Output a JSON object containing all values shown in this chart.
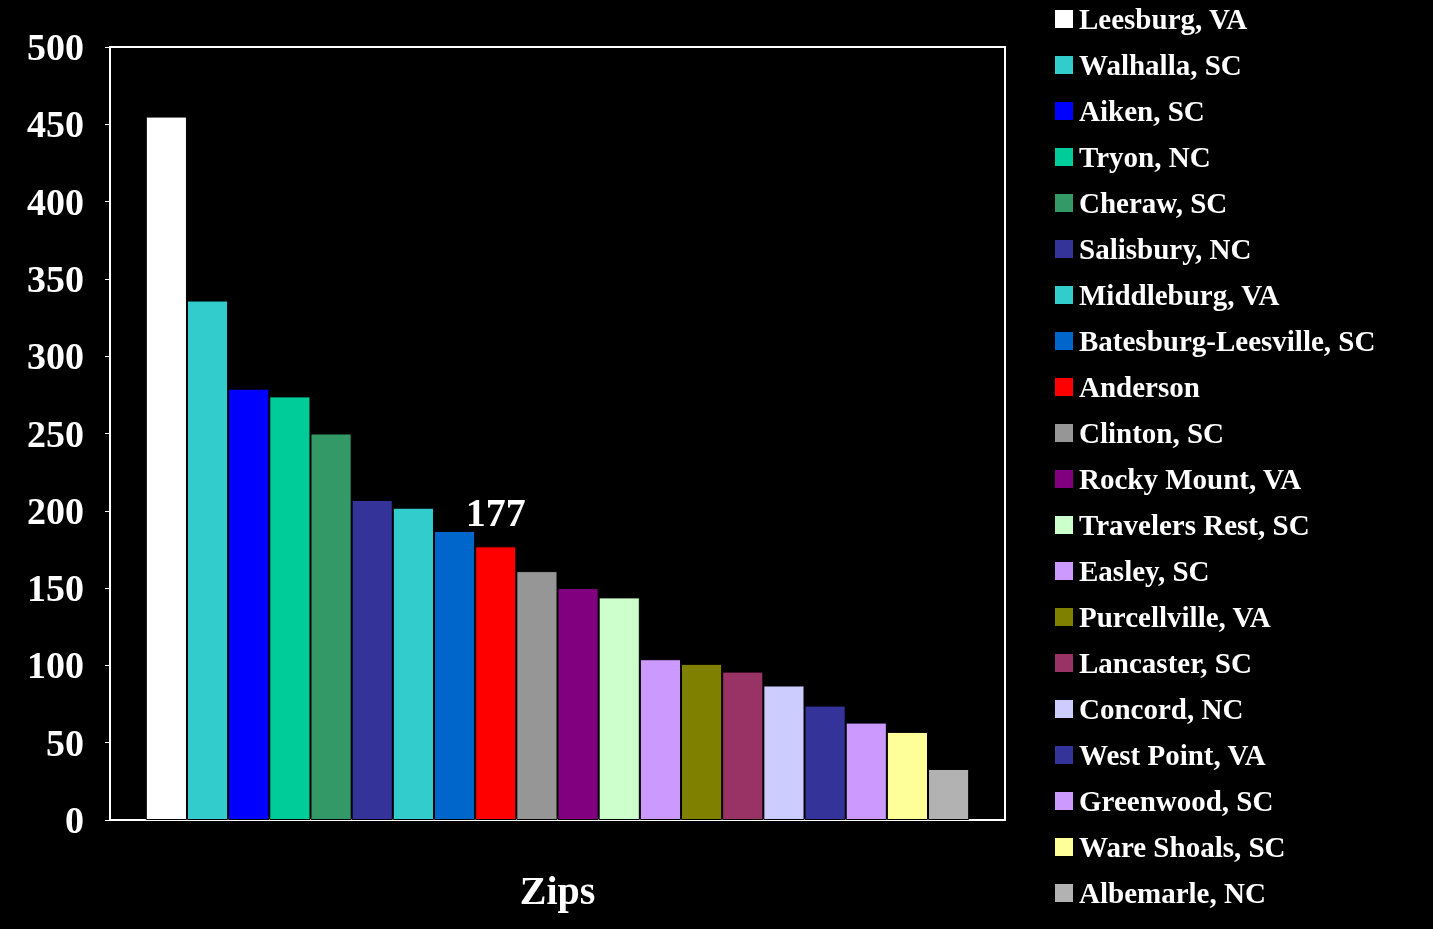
{
  "chart_data": {
    "type": "bar",
    "xlabel": "Zips",
    "categories": [
      null
    ],
    "ylim": [
      0,
      500
    ],
    "yticks": [
      0,
      50,
      100,
      150,
      200,
      250,
      300,
      350,
      400,
      450,
      500
    ],
    "grid": false,
    "legend": "right",
    "series": [
      {
        "name": "Leesburg, VA",
        "color": "#ffffff",
        "values": [
          455
        ]
      },
      {
        "name": "Walhalla, SC",
        "color": "#33cccc",
        "values": [
          336
        ]
      },
      {
        "name": "Aiken, SC",
        "color": "#0000ff",
        "values": [
          279
        ]
      },
      {
        "name": "Tryon, NC",
        "color": "#00cc99",
        "values": [
          274
        ]
      },
      {
        "name": "Cheraw, SC",
        "color": "#339966",
        "values": [
          250
        ]
      },
      {
        "name": "Salisbury, NC",
        "color": "#333399",
        "values": [
          207
        ]
      },
      {
        "name": "Middleburg, VA",
        "color": "#33cccc",
        "values": [
          202
        ]
      },
      {
        "name": "Batesburg-Leesville, SC",
        "color": "#0066cc",
        "values": [
          187
        ]
      },
      {
        "name": "Anderson",
        "color": "#ff0000",
        "values": [
          177
        ],
        "value_labels": [
          "177"
        ]
      },
      {
        "name": "Clinton, SC",
        "color": "#969696",
        "values": [
          161
        ]
      },
      {
        "name": "Rocky Mount, VA",
        "color": "#800080",
        "values": [
          150
        ]
      },
      {
        "name": "Travelers Rest, SC",
        "color": "#ccffcc",
        "values": [
          144
        ]
      },
      {
        "name": "Easley, SC",
        "color": "#cc99ff",
        "values": [
          104
        ]
      },
      {
        "name": "Purcellville, VA",
        "color": "#808000",
        "values": [
          101
        ]
      },
      {
        "name": "Lancaster, SC",
        "color": "#993366",
        "values": [
          96
        ]
      },
      {
        "name": "Concord, NC",
        "color": "#ccccff",
        "values": [
          87
        ]
      },
      {
        "name": "West Point, VA",
        "color": "#333399",
        "values": [
          74
        ]
      },
      {
        "name": "Greenwood, SC",
        "color": "#cc99ff",
        "values": [
          63
        ]
      },
      {
        "name": "Ware Shoals, SC",
        "color": "#ffff99",
        "values": [
          57
        ]
      },
      {
        "name": "Albemarle, NC",
        "color": "#b2b2b2",
        "values": [
          33
        ]
      }
    ]
  }
}
